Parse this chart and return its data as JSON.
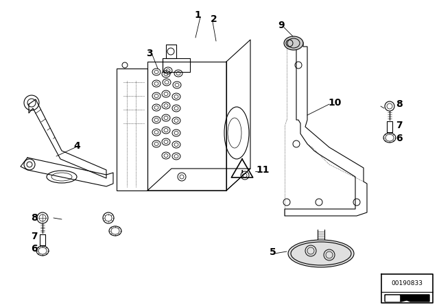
{
  "background_color": "#ffffff",
  "line_color": "#000000",
  "label_color": "#000000",
  "image_number": "00190833",
  "label_fontsize": 10
}
